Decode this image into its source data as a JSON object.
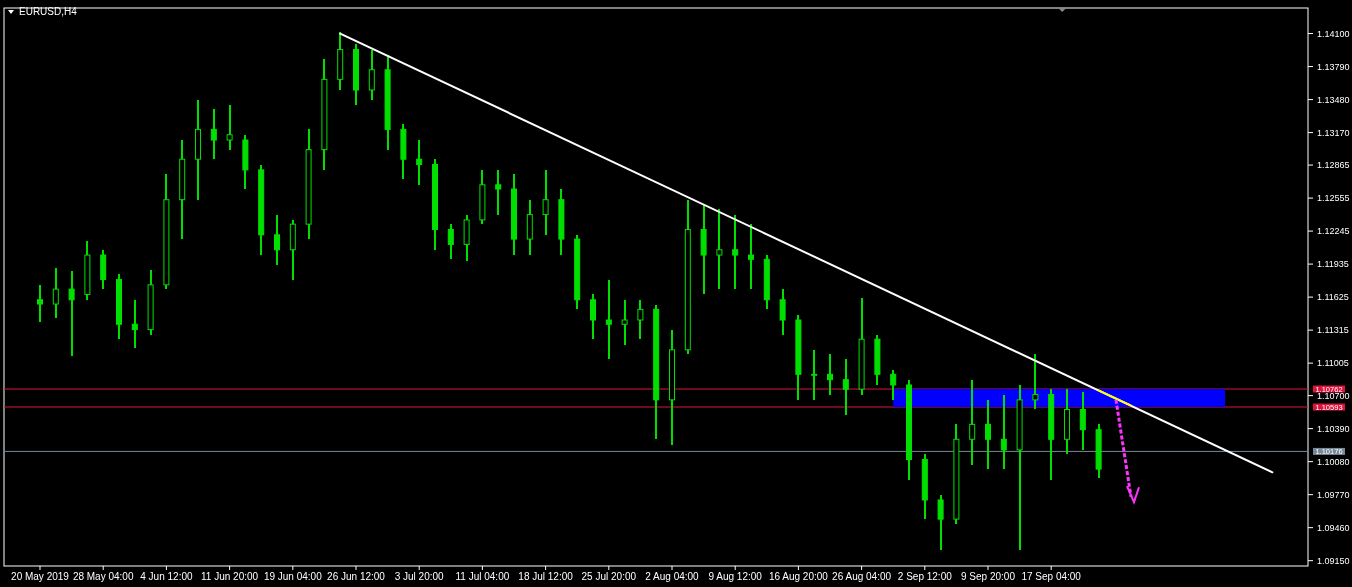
{
  "chart_data": {
    "type": "candlestick",
    "title": "EURUSD,H4",
    "color": "#00e000",
    "categories": [
      "20 May 2019",
      null,
      null,
      null,
      "28 May 04:00",
      null,
      null,
      null,
      "4 Jun 12:00",
      null,
      null,
      null,
      "11 Jun 20:00",
      null,
      null,
      null,
      "19 Jun 04:00",
      null,
      null,
      null,
      "26 Jun 12:00",
      null,
      null,
      null,
      "3 Jul 20:00",
      null,
      null,
      null,
      "11 Jul 04:00",
      null,
      null,
      null,
      "18 Jul 12:00",
      null,
      null,
      null,
      "25 Jul 20:00",
      null,
      null,
      null,
      "2 Aug 04:00",
      null,
      null,
      null,
      "9 Aug 12:00",
      null,
      null,
      null,
      "16 Aug 20:00",
      null,
      null,
      null,
      "26 Aug 04:00",
      null,
      null,
      null,
      "2 Sep 12:00",
      null,
      null,
      null,
      "9 Sep 20:00",
      null,
      null,
      null,
      "17 Sep 04:00",
      null,
      null,
      null,
      null,
      null,
      null,
      null,
      null,
      null,
      null,
      null,
      null,
      null,
      null,
      null,
      null
    ],
    "ohlc": [
      [
        1.116,
        1.1174,
        1.1139,
        1.1156
      ],
      [
        1.1156,
        1.119,
        1.1143,
        1.117
      ],
      [
        1.117,
        1.1187,
        1.1107,
        1.116
      ],
      [
        1.1165,
        1.1215,
        1.116,
        1.1202
      ],
      [
        1.1202,
        1.1207,
        1.117,
        1.1179
      ],
      [
        1.1179,
        1.1184,
        1.1123,
        1.1137
      ],
      [
        1.1137,
        1.116,
        1.1115,
        1.1132
      ],
      [
        1.1132,
        1.1188,
        1.1127,
        1.1174
      ],
      [
        1.1174,
        1.1278,
        1.117,
        1.1254
      ],
      [
        1.1254,
        1.131,
        1.1217,
        1.1292
      ],
      [
        1.1292,
        1.1348,
        1.1254,
        1.132
      ],
      [
        1.132,
        1.1339,
        1.1292,
        1.131
      ],
      [
        1.131,
        1.1343,
        1.1301,
        1.1315
      ],
      [
        1.131,
        1.1315,
        1.1264,
        1.1282
      ],
      [
        1.1282,
        1.1287,
        1.1202,
        1.1221
      ],
      [
        1.1221,
        1.124,
        1.1193,
        1.1207
      ],
      [
        1.1207,
        1.1235,
        1.1179,
        1.1231
      ],
      [
        1.1231,
        1.132,
        1.1217,
        1.1301
      ],
      [
        1.1301,
        1.1386,
        1.1282,
        1.1367
      ],
      [
        1.1367,
        1.1411,
        1.1357,
        1.1395
      ],
      [
        1.1395,
        1.14,
        1.1343,
        1.1357
      ],
      [
        1.1357,
        1.1395,
        1.1348,
        1.1376
      ],
      [
        1.1376,
        1.139,
        1.1301,
        1.132
      ],
      [
        1.132,
        1.1325,
        1.1273,
        1.1292
      ],
      [
        1.1292,
        1.131,
        1.1268,
        1.1287
      ],
      [
        1.1287,
        1.1292,
        1.1207,
        1.1226
      ],
      [
        1.1226,
        1.1231,
        1.1198,
        1.1212
      ],
      [
        1.1212,
        1.124,
        1.1196,
        1.1235
      ],
      [
        1.1235,
        1.1282,
        1.1231,
        1.1268
      ],
      [
        1.1268,
        1.1282,
        1.124,
        1.1264
      ],
      [
        1.1264,
        1.1278,
        1.1202,
        1.1217
      ],
      [
        1.1217,
        1.1254,
        1.1202,
        1.124
      ],
      [
        1.124,
        1.1282,
        1.1221,
        1.1254
      ],
      [
        1.1254,
        1.1264,
        1.1202,
        1.1217
      ],
      [
        1.1217,
        1.1221,
        1.1151,
        1.116
      ],
      [
        1.116,
        1.1165,
        1.1123,
        1.1141
      ],
      [
        1.1141,
        1.1179,
        1.1104,
        1.1137
      ],
      [
        1.1137,
        1.116,
        1.1118,
        1.1141
      ],
      [
        1.1141,
        1.116,
        1.1123,
        1.1151
      ],
      [
        1.1151,
        1.1155,
        1.1029,
        1.1066
      ],
      [
        1.1066,
        1.1132,
        1.1024,
        1.1113
      ],
      [
        1.1113,
        1.1254,
        1.1109,
        1.1226
      ],
      [
        1.1226,
        1.1249,
        1.1165,
        1.1202
      ],
      [
        1.1202,
        1.1245,
        1.117,
        1.1207
      ],
      [
        1.1207,
        1.124,
        1.117,
        1.1202
      ],
      [
        1.1202,
        1.1231,
        1.117,
        1.1198
      ],
      [
        1.1198,
        1.1202,
        1.1151,
        1.116
      ],
      [
        1.116,
        1.117,
        1.1127,
        1.1141
      ],
      [
        1.1141,
        1.1146,
        1.1066,
        1.109
      ],
      [
        1.109,
        1.1113,
        1.1066,
        1.109
      ],
      [
        1.109,
        1.1109,
        1.1071,
        1.1085
      ],
      [
        1.1085,
        1.1104,
        1.1052,
        1.1076
      ],
      [
        1.1076,
        1.1162,
        1.1071,
        1.1123
      ],
      [
        1.1123,
        1.1127,
        1.108,
        1.109
      ],
      [
        1.109,
        1.1094,
        1.1066,
        1.108
      ],
      [
        1.108,
        1.1085,
        1.0991,
        1.101
      ],
      [
        1.101,
        1.1015,
        1.0954,
        1.0972
      ],
      [
        1.0972,
        1.0977,
        1.0925,
        1.0954
      ],
      [
        1.0954,
        1.1043,
        1.0949,
        1.1029
      ],
      [
        1.1029,
        1.1085,
        1.1005,
        1.1043
      ],
      [
        1.1043,
        1.1066,
        1.1001,
        1.1029
      ],
      [
        1.1029,
        1.1071,
        1.1001,
        1.1019
      ],
      [
        1.1019,
        1.108,
        1.0925,
        1.1066
      ],
      [
        1.1066,
        1.1109,
        1.1057,
        1.1071
      ],
      [
        1.1071,
        1.1076,
        1.0991,
        1.1029
      ],
      [
        1.1029,
        1.1076,
        1.1015,
        1.1057
      ],
      [
        1.1057,
        1.1073,
        1.1019,
        1.1038
      ],
      [
        1.1038,
        1.1043,
        1.0993,
        1.1001
      ],
      null,
      null,
      null,
      null,
      null,
      null,
      null,
      null,
      null,
      null,
      null,
      null,
      null
    ],
    "series": [
      {
        "type": "line",
        "color": "#ffffff",
        "values": [
          null,
          null,
          null,
          null,
          null,
          null,
          null,
          null,
          null,
          null,
          null,
          null,
          null,
          null,
          null,
          null,
          null,
          null,
          null,
          1.141,
          null,
          null,
          null,
          null,
          null,
          null,
          null,
          null,
          null,
          null,
          null,
          null,
          null,
          null,
          null,
          null,
          null,
          null,
          null,
          null,
          null,
          null,
          null,
          null,
          null,
          null,
          null,
          null,
          null,
          null,
          null,
          null,
          null,
          null,
          null,
          null,
          null,
          null,
          null,
          null,
          null,
          null,
          null,
          null,
          null,
          null,
          null,
          null,
          null,
          null,
          null,
          null,
          null,
          null,
          null,
          null,
          null,
          null,
          1.0998,
          null,
          null
        ]
      },
      {
        "type": "line",
        "color": "#ffff00",
        "values": [
          null,
          null,
          null,
          null,
          null,
          null,
          null,
          null,
          null,
          null,
          null,
          null,
          null,
          null,
          null,
          null,
          null,
          null,
          null,
          null,
          null,
          null,
          null,
          null,
          null,
          null,
          null,
          null,
          null,
          null,
          null,
          null,
          null,
          null,
          null,
          null,
          null,
          null,
          null,
          null,
          null,
          null,
          null,
          null,
          null,
          null,
          null,
          null,
          null,
          null,
          null,
          null,
          null,
          null,
          null,
          null,
          null,
          null,
          null,
          null,
          null,
          null,
          null,
          null,
          null,
          null,
          null,
          1.1075,
          null,
          1.1061,
          null,
          null,
          null,
          null,
          null,
          null,
          null,
          null,
          null,
          null,
          null
        ]
      }
    ],
    "bands": [
      {
        "axis": "y",
        "from": 1.10593,
        "to": 1.10762,
        "color": "#0000ff"
      }
    ],
    "ref_lines": [
      {
        "axis": "y",
        "value": 1.10762,
        "label": "1.10762",
        "color": "#dc143c"
      },
      {
        "axis": "y",
        "value": 1.10593,
        "label": "1.10593",
        "color": "#dc143c"
      },
      {
        "axis": "y",
        "value": 1.10176,
        "label": "1.10176",
        "color": "#778899"
      }
    ],
    "ylim": [
      1.091,
      1.1434
    ],
    "yticks": [
      {
        "value": 1.141,
        "label": "1.14100"
      },
      {
        "value": 1.1379,
        "label": "1.13790"
      },
      {
        "value": 1.1348,
        "label": "1.13480"
      },
      {
        "value": 1.1317,
        "label": "1.13170"
      },
      {
        "value": 1.12865,
        "label": "1.12865"
      },
      {
        "value": 1.12555,
        "label": "1.12555"
      },
      {
        "value": 1.12245,
        "label": "1.12245"
      },
      {
        "value": 1.11935,
        "label": "1.11935"
      },
      {
        "value": 1.11625,
        "label": "1.11625"
      },
      {
        "value": 1.11315,
        "label": "1.11315"
      },
      {
        "value": 1.11005,
        "label": "1.11005"
      },
      {
        "value": 1.107,
        "label": "1.10700"
      },
      {
        "value": 1.1039,
        "label": "1.10390"
      },
      {
        "value": 1.1008,
        "label": "1.10080"
      },
      {
        "value": 1.0977,
        "label": "1.09770"
      },
      {
        "value": 1.0946,
        "label": "1.09460"
      },
      {
        "value": 1.0915,
        "label": "1.09150"
      }
    ]
  }
}
